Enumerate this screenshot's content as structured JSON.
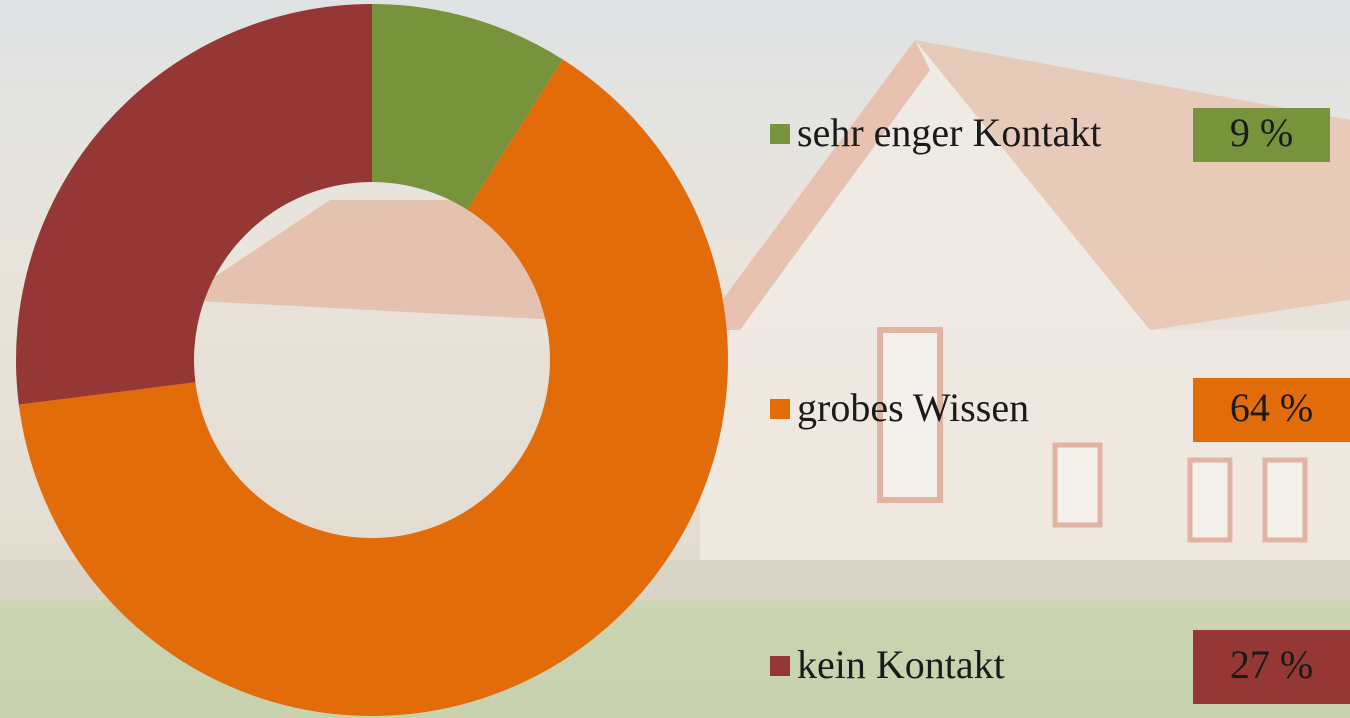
{
  "chart_data": {
    "type": "pie",
    "donut": true,
    "categories": [
      "sehr enger Kontakt",
      "grobes Wissen",
      "kein Kontakt"
    ],
    "values": [
      9,
      64,
      27
    ],
    "value_labels": [
      "9 %",
      "64 %",
      "27 %"
    ],
    "colors": [
      "#77933c",
      "#e36c0a",
      "#953735"
    ]
  }
}
